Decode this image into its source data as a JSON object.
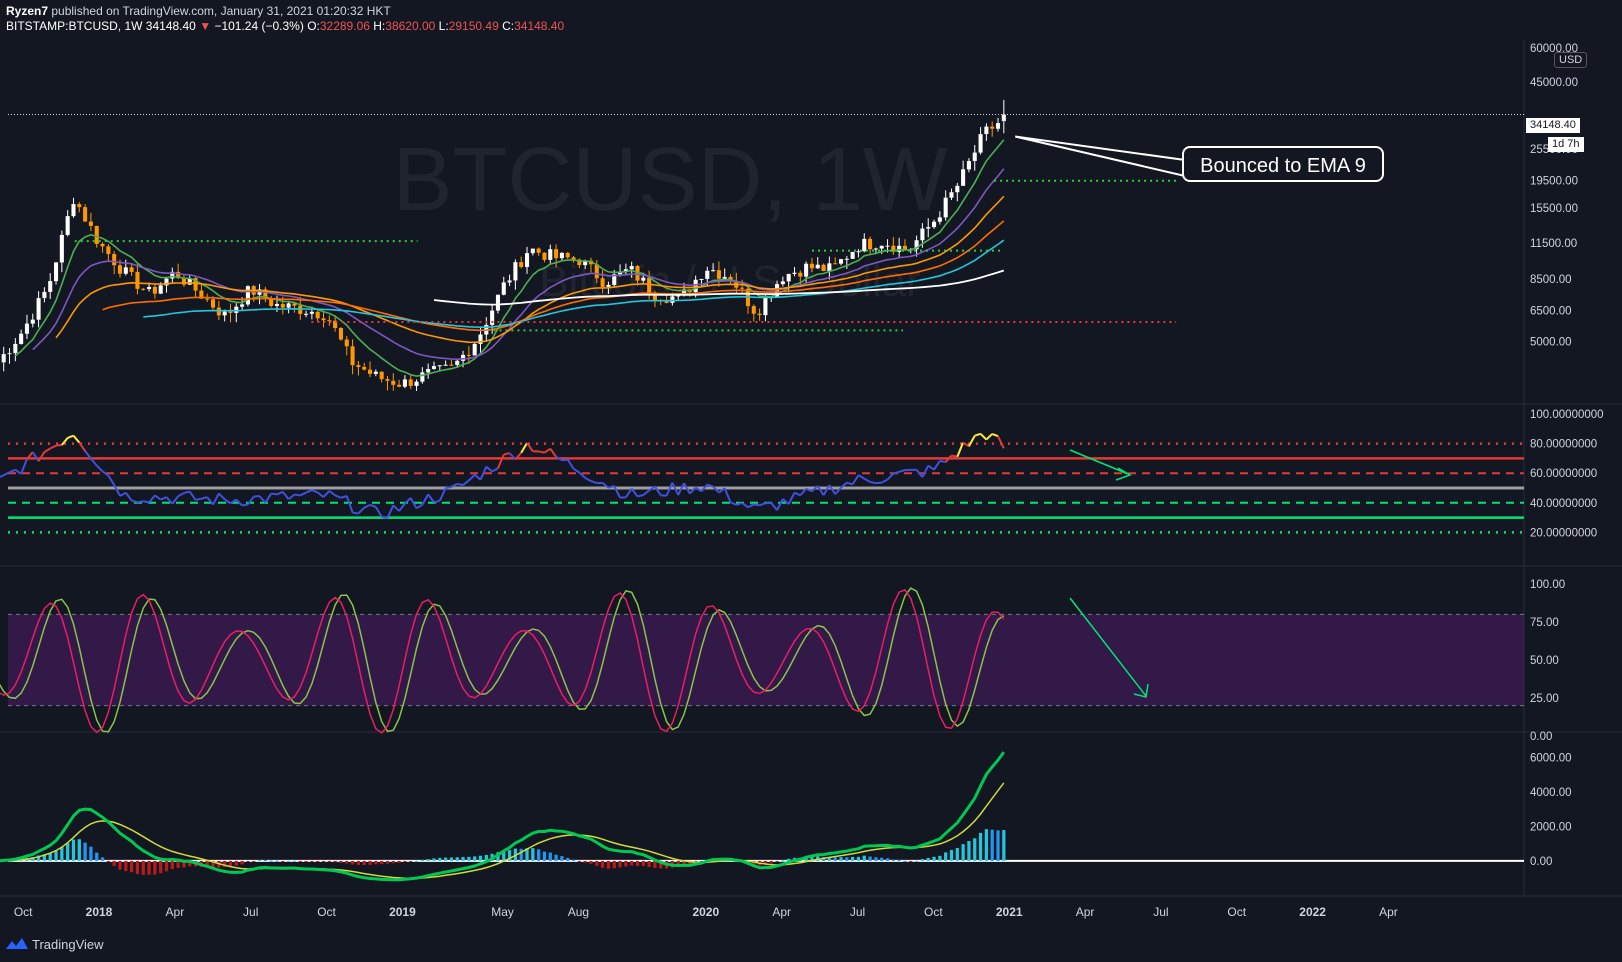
{
  "header": {
    "author": "Ryzen7",
    "published": " published on TradingView.com, January 31, 2021 01:20:32 HKT",
    "symbol": "BITSTAMP:BTCUSD, 1W",
    "last": "34148.40",
    "arrow": "▼",
    "change": "−101.24 (−0.3%)",
    "o_label": "O:",
    "o": "32289.06",
    "h_label": "H:",
    "h": "38620.00",
    "l_label": "L:",
    "l": "29150.49",
    "c_label": "C:",
    "c": "34148.40"
  },
  "watermark": {
    "title": "BTCUSD, 1W",
    "subtitle": "Bitcoin / U.S. Dollar"
  },
  "annotation": {
    "text": "Bounced to EMA 9"
  },
  "price_axis": {
    "currency": "USD",
    "last_price": "34148.40",
    "countdown": "1d 7h"
  },
  "footer": {
    "brand": "TradingView"
  },
  "colors": {
    "background": "#131722",
    "up": "#ffffff",
    "down": "#ff9800",
    "ema9": "#4caf50",
    "ema21": "#7e57c2",
    "ema50": "#ff9800",
    "ema100": "#ff6d00",
    "ema200": "#26c6da",
    "sma200": "#ffffff",
    "rsi": "#3f51e0",
    "stoch_k": "#e91e63",
    "stoch_d": "#8bc34a"
  },
  "chart_data": [
    {
      "type": "candlestick",
      "title": "BTCUSD, 1W",
      "x_axis_labels": [
        "Oct",
        "2018",
        "Apr",
        "Jul",
        "Oct",
        "2019",
        "May",
        "Aug",
        "2020",
        "Apr",
        "Jul",
        "Oct",
        "2021",
        "Apr",
        "Jul",
        "Oct",
        "2022",
        "Apr"
      ],
      "y_axis": {
        "scale": "log",
        "ticks": [
          "60000.00",
          "45000.00",
          "25500.00",
          "19500.00",
          "15500.00",
          "11500.00",
          "8500.00",
          "6500.00",
          "5000.00"
        ]
      },
      "price_path": [
        [
          "2017-09",
          4200
        ],
        [
          "2017-10",
          5500
        ],
        [
          "2017-11",
          8000
        ],
        [
          "2017-12",
          17000
        ],
        [
          "2018-01",
          11500
        ],
        [
          "2018-02",
          9000
        ],
        [
          "2018-03",
          7500
        ],
        [
          "2018-04",
          9000
        ],
        [
          "2018-05",
          7500
        ],
        [
          "2018-06",
          6200
        ],
        [
          "2018-07",
          7800
        ],
        [
          "2018-08",
          6800
        ],
        [
          "2018-09",
          6600
        ],
        [
          "2018-10",
          6300
        ],
        [
          "2018-11",
          4200
        ],
        [
          "2018-12",
          3700
        ],
        [
          "2019-01",
          3500
        ],
        [
          "2019-02",
          3800
        ],
        [
          "2019-03",
          4000
        ],
        [
          "2019-04",
          5200
        ],
        [
          "2019-05",
          8000
        ],
        [
          "2019-06",
          11000
        ],
        [
          "2019-07",
          10200
        ],
        [
          "2019-08",
          10000
        ],
        [
          "2019-09",
          8300
        ],
        [
          "2019-10",
          9200
        ],
        [
          "2019-11",
          7500
        ],
        [
          "2019-12",
          7200
        ],
        [
          "2020-01",
          9400
        ],
        [
          "2020-02",
          8600
        ],
        [
          "2020-03",
          6400
        ],
        [
          "2020-04",
          8700
        ],
        [
          "2020-05",
          9400
        ],
        [
          "2020-06",
          9200
        ],
        [
          "2020-07",
          11300
        ],
        [
          "2020-08",
          11700
        ],
        [
          "2020-09",
          10800
        ],
        [
          "2020-10",
          13800
        ],
        [
          "2020-11",
          19000
        ],
        [
          "2020-12",
          29000
        ],
        [
          "2021-01",
          34148.4
        ]
      ],
      "ohlc_last": {
        "open": 32289.06,
        "high": 38620.0,
        "low": 29150.49,
        "close": 34148.4
      },
      "horizontal_levels": [
        11700,
        5900,
        5500,
        19500,
        10800
      ]
    },
    {
      "type": "line",
      "name": "RSI",
      "y_axis_ticks": [
        "100.00000000",
        "80.00000000",
        "60.00000000",
        "40.00000000",
        "20.00000000"
      ],
      "levels": [
        80,
        70,
        60,
        50,
        40,
        30,
        20
      ],
      "values": [
        [
          "2017-10",
          65
        ],
        [
          "2017-12",
          88
        ],
        [
          "2018-02",
          45
        ],
        [
          "2018-06",
          42
        ],
        [
          "2018-10",
          45
        ],
        [
          "2018-12",
          32
        ],
        [
          "2019-03",
          48
        ],
        [
          "2019-06",
          80
        ],
        [
          "2019-10",
          45
        ],
        [
          "2020-01",
          52
        ],
        [
          "2020-03",
          35
        ],
        [
          "2020-07",
          55
        ],
        [
          "2020-10",
          62
        ],
        [
          "2020-12",
          88
        ],
        [
          "2021-01",
          75
        ]
      ]
    },
    {
      "type": "line",
      "name": "Stoch RSI",
      "y_axis_ticks": [
        "100.00",
        "75.00",
        "50.00",
        "25.00",
        "0.00"
      ],
      "band": [
        20,
        80
      ]
    },
    {
      "type": "bar",
      "name": "MACD",
      "y_axis_ticks": [
        "6000.00",
        "4000.00",
        "2000.00",
        "0.00"
      ],
      "macd_last": 6300,
      "signal_last": 4300,
      "histogram_peak": 2800
    }
  ]
}
